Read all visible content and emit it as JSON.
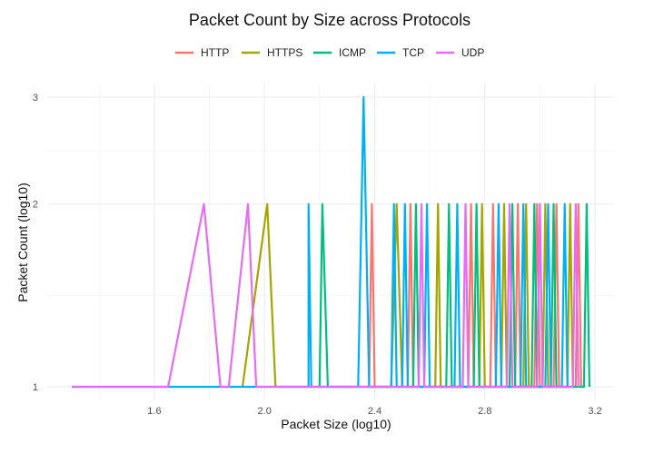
{
  "chart_data": {
    "type": "line",
    "title": "Packet Count by Size across Protocols",
    "xlabel": "Packet Size (log10)",
    "ylabel": "Packet Count (log10)",
    "x_scale": "log10",
    "y_scale": "log10",
    "x_tick_labels": [
      "1.6",
      "2.0",
      "2.4",
      "2.8",
      "3.2"
    ],
    "y_tick_labels": [
      "1",
      "2",
      "3"
    ],
    "x_ticks": [
      1.6,
      2.0,
      2.4,
      2.8,
      3.2
    ],
    "y_ticks": [
      1,
      2,
      3
    ],
    "xlim": [
      1.3,
      3.2
    ],
    "ylim": [
      1,
      3
    ],
    "grid": true,
    "legend_position": "top",
    "series": [
      {
        "name": "HTTP",
        "color": "#F8766D",
        "points": [
          [
            2.38,
            1
          ],
          [
            2.39,
            2
          ],
          [
            2.4,
            1
          ],
          [
            2.52,
            1
          ],
          [
            2.53,
            2
          ],
          [
            2.54,
            1
          ],
          [
            2.74,
            1
          ],
          [
            2.75,
            2
          ],
          [
            2.76,
            1
          ],
          [
            2.82,
            1
          ],
          [
            2.83,
            2
          ],
          [
            2.84,
            1
          ],
          [
            2.91,
            1
          ],
          [
            2.92,
            2
          ],
          [
            2.93,
            1
          ],
          [
            2.98,
            1
          ],
          [
            2.99,
            2
          ],
          [
            3.0,
            1
          ],
          [
            3.05,
            1
          ],
          [
            3.06,
            2
          ],
          [
            3.07,
            1
          ],
          [
            3.13,
            1
          ],
          [
            3.14,
            2
          ],
          [
            3.15,
            1
          ]
        ]
      },
      {
        "name": "HTTPS",
        "color": "#A3A500",
        "points": [
          [
            1.92,
            1
          ],
          [
            2.01,
            2
          ],
          [
            2.04,
            1
          ],
          [
            2.46,
            1
          ],
          [
            2.48,
            2
          ],
          [
            2.5,
            1
          ],
          [
            2.62,
            1
          ],
          [
            2.63,
            2
          ],
          [
            2.64,
            1
          ],
          [
            2.78,
            1
          ],
          [
            2.79,
            2
          ],
          [
            2.8,
            1
          ],
          [
            2.86,
            1
          ],
          [
            2.87,
            2
          ],
          [
            2.88,
            1
          ],
          [
            2.94,
            1
          ],
          [
            2.95,
            2
          ],
          [
            2.96,
            1
          ],
          [
            3.01,
            1
          ],
          [
            3.02,
            2
          ],
          [
            3.03,
            1
          ],
          [
            3.1,
            1
          ],
          [
            3.11,
            2
          ],
          [
            3.12,
            1
          ]
        ]
      },
      {
        "name": "ICMP",
        "color": "#00BF7D",
        "points": [
          [
            2.2,
            1
          ],
          [
            2.21,
            2
          ],
          [
            2.23,
            1
          ],
          [
            2.54,
            1
          ],
          [
            2.55,
            2
          ],
          [
            2.56,
            1
          ],
          [
            2.66,
            1
          ],
          [
            2.67,
            2
          ],
          [
            2.68,
            1
          ],
          [
            2.76,
            1
          ],
          [
            2.77,
            2
          ],
          [
            2.78,
            1
          ],
          [
            2.89,
            1
          ],
          [
            2.9,
            2
          ],
          [
            2.91,
            1
          ],
          [
            2.97,
            1
          ],
          [
            2.98,
            2
          ],
          [
            2.99,
            1
          ],
          [
            3.04,
            1
          ],
          [
            3.05,
            2
          ],
          [
            3.06,
            1
          ],
          [
            3.16,
            1
          ],
          [
            3.17,
            2
          ],
          [
            3.18,
            1
          ]
        ]
      },
      {
        "name": "TCP",
        "color": "#00B0F6",
        "points": [
          [
            1.3,
            1
          ],
          [
            2.16,
            1
          ],
          [
            2.16,
            2
          ],
          [
            2.17,
            1
          ],
          [
            2.34,
            1
          ],
          [
            2.36,
            3
          ],
          [
            2.38,
            1
          ],
          [
            2.46,
            1
          ],
          [
            2.47,
            2
          ],
          [
            2.48,
            1
          ],
          [
            2.5,
            1
          ],
          [
            2.51,
            2
          ],
          [
            2.52,
            1
          ],
          [
            2.58,
            1
          ],
          [
            2.59,
            2
          ],
          [
            2.6,
            1
          ],
          [
            2.69,
            1
          ],
          [
            2.7,
            2
          ],
          [
            2.71,
            1
          ],
          [
            2.84,
            1
          ],
          [
            2.85,
            2
          ],
          [
            2.86,
            1
          ],
          [
            2.93,
            1
          ],
          [
            2.94,
            2
          ],
          [
            2.95,
            1
          ],
          [
            3.02,
            1
          ],
          [
            3.03,
            2
          ],
          [
            3.04,
            1
          ],
          [
            3.08,
            1
          ],
          [
            3.09,
            2
          ],
          [
            3.1,
            1
          ]
        ]
      },
      {
        "name": "UDP",
        "color": "#E76BF3",
        "points": [
          [
            1.3,
            1
          ],
          [
            1.65,
            1
          ],
          [
            1.78,
            2
          ],
          [
            1.84,
            1
          ],
          [
            1.87,
            1
          ],
          [
            1.94,
            2
          ],
          [
            1.97,
            1
          ],
          [
            2.56,
            1
          ],
          [
            2.57,
            2
          ],
          [
            2.58,
            1
          ],
          [
            2.72,
            1
          ],
          [
            2.73,
            2
          ],
          [
            2.74,
            1
          ],
          [
            2.88,
            1
          ],
          [
            2.89,
            2
          ],
          [
            2.9,
            1
          ],
          [
            2.99,
            1
          ],
          [
            3.0,
            2
          ],
          [
            3.01,
            1
          ],
          [
            3.12,
            1
          ],
          [
            3.13,
            2
          ],
          [
            3.14,
            1
          ]
        ]
      }
    ]
  }
}
